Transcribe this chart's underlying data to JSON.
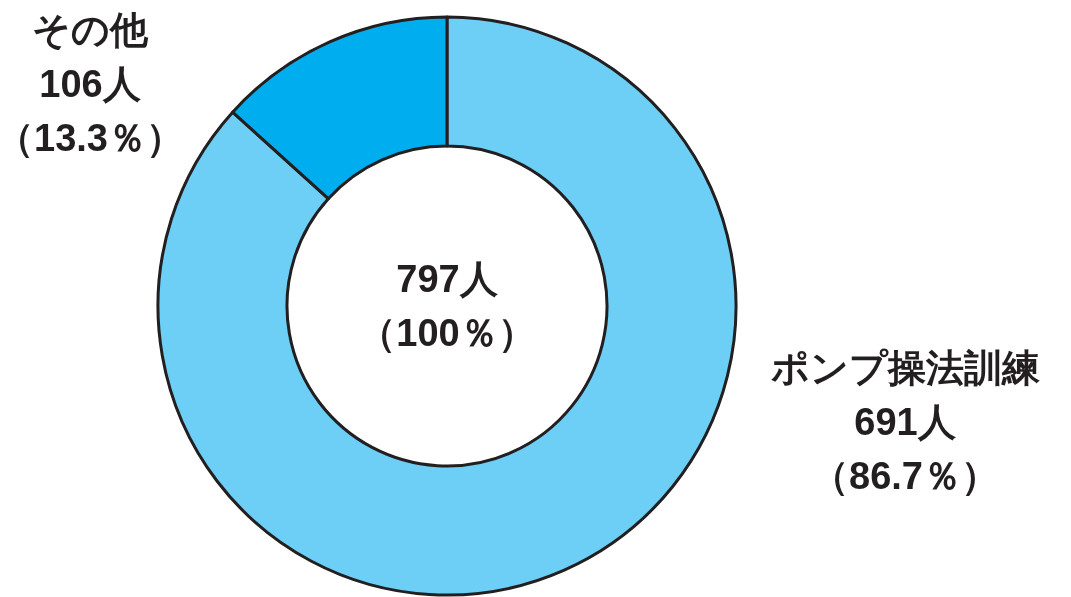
{
  "chart_data": {
    "type": "donut",
    "categories": [
      "ポンプ操法訓練",
      "その他"
    ],
    "values": [
      691,
      106
    ],
    "colors": [
      "#6dcff6",
      "#00aeef"
    ],
    "value_labels": [
      "691人",
      "106人"
    ],
    "annotations": [
      "797人",
      "（100％）",
      {
        "text": "（86.7％）",
        "x": "ポンプ操法訓練"
      },
      {
        "text": "（13.3％）",
        "x": "その他"
      }
    ]
  }
}
